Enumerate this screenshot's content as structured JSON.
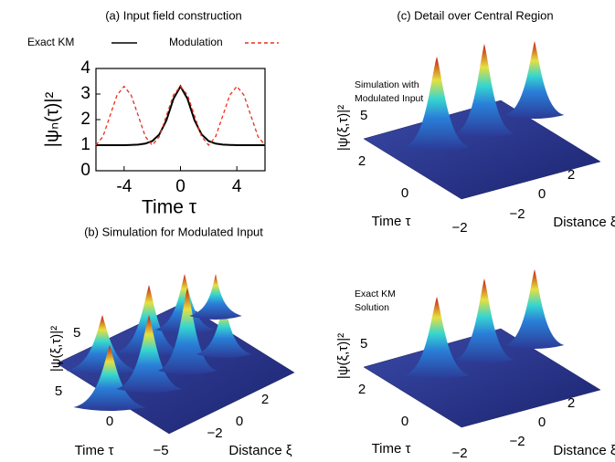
{
  "chart_data": {
    "type": "line",
    "title": "(a) Input field construction",
    "x_label": "Time τ",
    "y_label": "|ψₙ(τ)|²",
    "x": [
      -6,
      -5.5,
      -5,
      -4.5,
      -4,
      -3.5,
      -3,
      -2.5,
      -2,
      -1.5,
      -1,
      -0.5,
      0,
      0.5,
      1,
      1.5,
      2,
      2.5,
      3,
      3.5,
      4,
      4.5,
      5,
      5.5,
      6
    ],
    "series": [
      {
        "name": "Exact KM",
        "color": "#000000",
        "values": [
          1.0,
          1.0,
          1.0,
          1.0,
          1.0,
          1.01,
          1.02,
          1.06,
          1.16,
          1.42,
          1.97,
          2.81,
          3.3,
          2.81,
          1.97,
          1.42,
          1.16,
          1.06,
          1.02,
          1.01,
          1.0,
          1.0,
          1.0,
          1.0,
          1.0
        ]
      },
      {
        "name": "Modulation",
        "color": "#e8301c",
        "dashed": true,
        "values": [
          1.0,
          1.34,
          2.15,
          2.96,
          3.3,
          2.96,
          2.15,
          1.34,
          1.0,
          1.34,
          2.15,
          2.96,
          3.3,
          2.96,
          2.15,
          1.34,
          1.0,
          1.34,
          2.15,
          2.96,
          3.3,
          2.96,
          2.15,
          1.34,
          1.0
        ]
      }
    ],
    "xlim": [
      -6,
      6
    ],
    "xticks": [
      -4,
      0,
      4
    ],
    "ylim": [
      0,
      4
    ],
    "yticks": [
      0,
      1,
      2,
      3,
      4
    ]
  },
  "panels": [
    {
      "title": "(b) Simulation for Modulated Input",
      "z_label": "|ψ(ξ,τ)|²",
      "z_ticks": [
        "5"
      ],
      "time_label": "Time τ",
      "time_ticks": [
        "5",
        "0",
        "−5"
      ],
      "distance_label": "Distance ξ",
      "distance_ticks": [
        "−2",
        "0",
        "2"
      ]
    },
    {
      "title": "(c) Detail over Central Region",
      "annotation": [
        "Simulation with",
        "Modulated Input"
      ],
      "z_label": "|ψ(ξ,τ)|²",
      "z_ticks": [
        "5"
      ],
      "time_label": "Time τ",
      "time_ticks": [
        "2",
        "0",
        "−2"
      ],
      "distance_label": "Distance ξ",
      "distance_ticks": [
        "−2",
        "0",
        "2"
      ]
    },
    {
      "annotation": [
        "Exact KM",
        "Solution"
      ],
      "z_label": "|ψ(ξ,τ)|²",
      "z_ticks": [
        "5"
      ],
      "time_label": "Time τ",
      "time_ticks": [
        "2",
        "0",
        "−2"
      ],
      "distance_label": "Distance ξ",
      "distance_ticks": [
        "−2",
        "0",
        "2"
      ]
    }
  ]
}
